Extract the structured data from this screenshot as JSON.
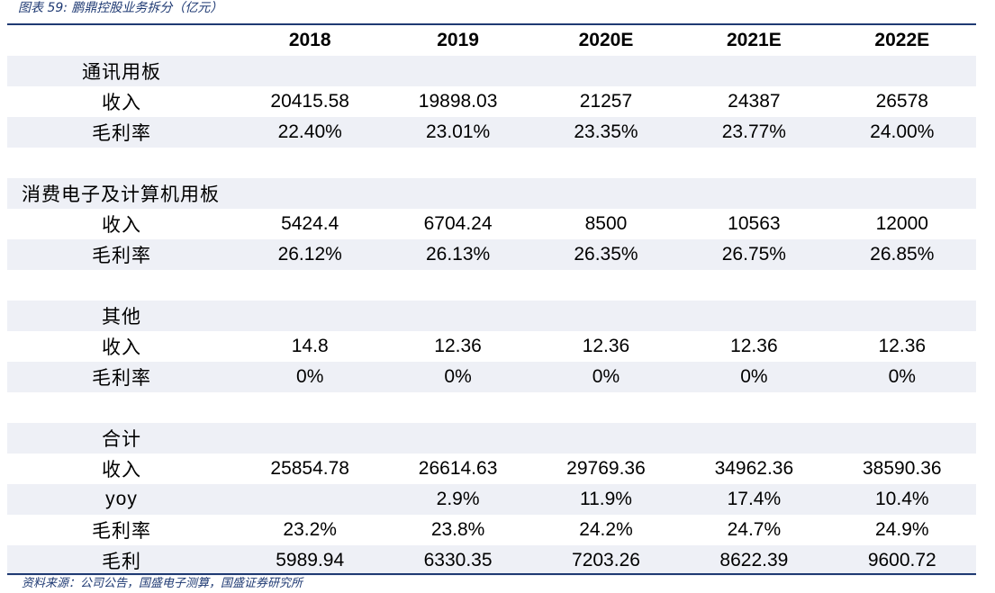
{
  "caption": "图表 59:  鹏鼎控股业务拆分（亿元）",
  "source": "资料来源：公司公告，国盛电子测算，国盛证券研究所",
  "years": [
    "2018",
    "2019",
    "2020E",
    "2021E",
    "2022E"
  ],
  "rows": [
    {
      "type": "section",
      "label": "通讯用板",
      "align": "center",
      "values": [
        "",
        "",
        "",
        "",
        ""
      ],
      "shade": true
    },
    {
      "type": "data",
      "label": "收入",
      "values": [
        "20415.58",
        "19898.03",
        "21257",
        "24387",
        "26578"
      ],
      "shade": false
    },
    {
      "type": "data",
      "label": "毛利率",
      "values": [
        "22.40%",
        "23.01%",
        "23.35%",
        "23.77%",
        "24.00%"
      ],
      "shade": true
    },
    {
      "type": "spacer",
      "label": "",
      "values": [
        "",
        "",
        "",
        "",
        ""
      ],
      "shade": false
    },
    {
      "type": "section",
      "label": "消费电子及计算机用板",
      "align": "left",
      "values": [
        "",
        "",
        "",
        "",
        ""
      ],
      "shade": true
    },
    {
      "type": "data",
      "label": "收入",
      "values": [
        "5424.4",
        "6704.24",
        "8500",
        "10563",
        "12000"
      ],
      "shade": false
    },
    {
      "type": "data",
      "label": "毛利率",
      "values": [
        "26.12%",
        "26.13%",
        "26.35%",
        "26.75%",
        "26.85%"
      ],
      "shade": true
    },
    {
      "type": "spacer",
      "label": "",
      "values": [
        "",
        "",
        "",
        "",
        ""
      ],
      "shade": false
    },
    {
      "type": "section",
      "label": "其他",
      "align": "center",
      "values": [
        "",
        "",
        "",
        "",
        ""
      ],
      "shade": true
    },
    {
      "type": "data",
      "label": "收入",
      "values": [
        "14.8",
        "12.36",
        "12.36",
        "12.36",
        "12.36"
      ],
      "shade": false
    },
    {
      "type": "data",
      "label": "毛利率",
      "values": [
        "0%",
        "0%",
        "0%",
        "0%",
        "0%"
      ],
      "shade": true
    },
    {
      "type": "spacer",
      "label": "",
      "values": [
        "",
        "",
        "",
        "",
        ""
      ],
      "shade": false
    },
    {
      "type": "section",
      "label": "合计",
      "align": "center",
      "values": [
        "",
        "",
        "",
        "",
        ""
      ],
      "shade": true
    },
    {
      "type": "data",
      "label": "收入",
      "values": [
        "25854.78",
        "26614.63",
        "29769.36",
        "34962.36",
        "38590.36"
      ],
      "shade": false
    },
    {
      "type": "data",
      "label": "yoy",
      "bold": true,
      "values": [
        "",
        "2.9%",
        "11.9%",
        "17.4%",
        "10.4%"
      ],
      "shade": true
    },
    {
      "type": "data",
      "label": "毛利率",
      "values": [
        "23.2%",
        "23.8%",
        "24.2%",
        "24.7%",
        "24.9%"
      ],
      "shade": false
    },
    {
      "type": "data",
      "label": "毛利",
      "values": [
        "5989.94",
        "6330.35",
        "7203.26",
        "8622.39",
        "9600.72"
      ],
      "shade": true
    }
  ]
}
